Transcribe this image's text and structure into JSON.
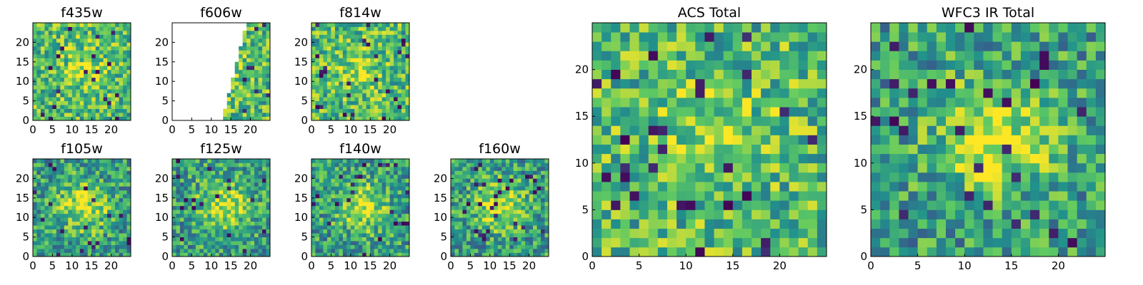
{
  "chart_data": [
    {
      "type": "heatmap",
      "title": "f435w",
      "xticks": [
        "0",
        "5",
        "10",
        "15",
        "20"
      ],
      "yticks": [
        "0",
        "5",
        "10",
        "15",
        "20"
      ],
      "xlim": [
        0,
        25
      ],
      "ylim": [
        0,
        25
      ],
      "grid": false,
      "masked_region": "none"
    },
    {
      "type": "heatmap",
      "title": "f606w",
      "xticks": [
        "0",
        "5",
        "10",
        "15",
        "20"
      ],
      "yticks": [
        "0",
        "5",
        "10",
        "15",
        "20"
      ],
      "xlim": [
        0,
        25
      ],
      "ylim": [
        0,
        25
      ],
      "grid": false,
      "masked_region": "left-triangle"
    },
    {
      "type": "heatmap",
      "title": "f814w",
      "xticks": [
        "0",
        "5",
        "10",
        "15",
        "20"
      ],
      "yticks": [
        "0",
        "5",
        "10",
        "15",
        "20"
      ],
      "xlim": [
        0,
        25
      ],
      "ylim": [
        0,
        25
      ],
      "grid": false,
      "masked_region": "none"
    },
    {
      "type": "heatmap",
      "title": "f105w",
      "xticks": [
        "0",
        "5",
        "10",
        "15",
        "20"
      ],
      "yticks": [
        "0",
        "5",
        "10",
        "15",
        "20"
      ],
      "xlim": [
        0,
        25
      ],
      "ylim": [
        0,
        25
      ],
      "grid": false,
      "masked_region": "none"
    },
    {
      "type": "heatmap",
      "title": "f125w",
      "xticks": [
        "0",
        "5",
        "10",
        "15",
        "20"
      ],
      "yticks": [
        "0",
        "5",
        "10",
        "15",
        "20"
      ],
      "xlim": [
        0,
        25
      ],
      "ylim": [
        0,
        25
      ],
      "grid": false,
      "masked_region": "none"
    },
    {
      "type": "heatmap",
      "title": "f140w",
      "xticks": [
        "0",
        "5",
        "10",
        "15",
        "20"
      ],
      "yticks": [
        "0",
        "5",
        "10",
        "15",
        "20"
      ],
      "xlim": [
        0,
        25
      ],
      "ylim": [
        0,
        25
      ],
      "grid": false,
      "masked_region": "none"
    },
    {
      "type": "heatmap",
      "title": "f160w",
      "xticks": [
        "0",
        "5",
        "10",
        "15",
        "20"
      ],
      "yticks": [
        "0",
        "5",
        "10",
        "15",
        "20"
      ],
      "xlim": [
        0,
        25
      ],
      "ylim": [
        0,
        25
      ],
      "grid": false,
      "masked_region": "none"
    },
    {
      "type": "heatmap",
      "title": "ACS Total",
      "xticks": [
        "0",
        "5",
        "10",
        "15",
        "20"
      ],
      "yticks": [
        "0",
        "5",
        "10",
        "15",
        "20"
      ],
      "xlim": [
        0,
        25
      ],
      "ylim": [
        0,
        25
      ],
      "grid": false,
      "masked_region": "none"
    },
    {
      "type": "heatmap",
      "title": "WFC3 IR Total",
      "xticks": [
        "0",
        "5",
        "10",
        "15",
        "20"
      ],
      "yticks": [
        "0",
        "5",
        "10",
        "15",
        "20"
      ],
      "xlim": [
        0,
        25
      ],
      "ylim": [
        0,
        25
      ],
      "grid": false,
      "masked_region": "none"
    }
  ],
  "colormap": [
    "#440154",
    "#3b528b",
    "#21918c",
    "#5ec962",
    "#fde725"
  ]
}
